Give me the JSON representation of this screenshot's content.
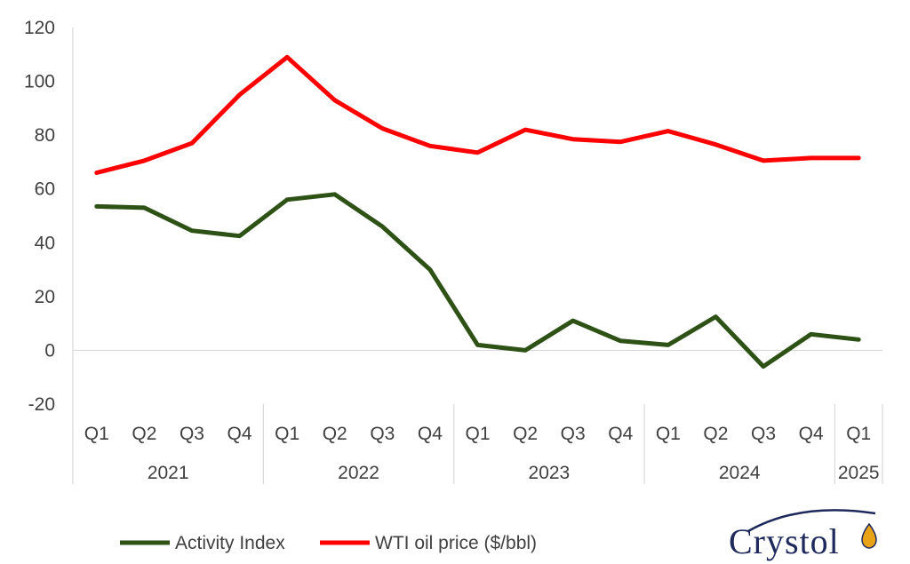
{
  "chart_data": {
    "type": "line",
    "categories": [
      "Q1",
      "Q2",
      "Q3",
      "Q4",
      "Q1",
      "Q2",
      "Q3",
      "Q4",
      "Q1",
      "Q2",
      "Q3",
      "Q4",
      "Q1",
      "Q2",
      "Q3",
      "Q4",
      "Q1"
    ],
    "years": [
      {
        "label": "2021",
        "span": 4
      },
      {
        "label": "2022",
        "span": 4
      },
      {
        "label": "2023",
        "span": 4
      },
      {
        "label": "2024",
        "span": 4
      },
      {
        "label": "2025",
        "span": 1
      }
    ],
    "series": [
      {
        "name": "Activity Index",
        "color": "#2e5216",
        "values": [
          53.5,
          53,
          44.5,
          42.5,
          56,
          58,
          46,
          30,
          2,
          0,
          11,
          3.5,
          2,
          12.5,
          -6,
          6,
          4
        ]
      },
      {
        "name": "WTI oil price ($/bbl)",
        "color": "#ff0000",
        "values": [
          66,
          70.5,
          77,
          95,
          109,
          93,
          82.5,
          76,
          73.5,
          82,
          78.5,
          77.5,
          81.5,
          76.5,
          70.5,
          71.5,
          71.5
        ]
      }
    ],
    "ylim": [
      -20,
      120
    ],
    "yticks": [
      -20,
      0,
      20,
      40,
      60,
      80,
      100,
      120
    ],
    "grid": false,
    "legend": "bottom"
  },
  "logo": {
    "text": "Crystol",
    "icon": "oil-drop-icon"
  }
}
